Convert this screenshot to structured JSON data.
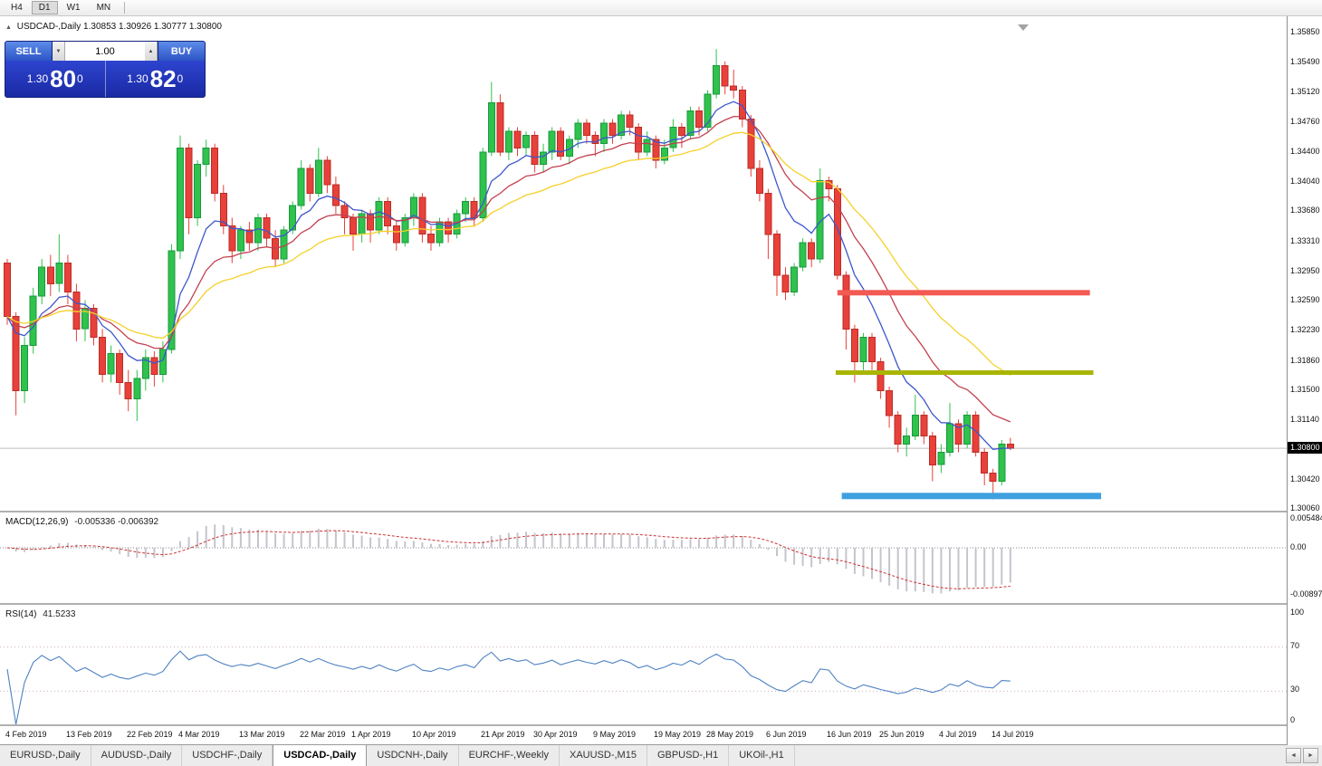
{
  "toolbar": {
    "timeframes": [
      "H4",
      "D1",
      "W1",
      "MN"
    ],
    "active_timeframe": "D1"
  },
  "chart": {
    "collapse_glyph": "▲",
    "title": "USDCAD-,Daily  1.30853 1.30926 1.30777 1.30800"
  },
  "trade_widget": {
    "sell_label": "SELL",
    "buy_label": "BUY",
    "volume": "1.00",
    "volume_down_glyph": "▼",
    "volume_up_glyph": "▲",
    "sell": {
      "prefix": "1.30",
      "big": "80",
      "sup": "0"
    },
    "buy": {
      "prefix": "1.30",
      "big": "82",
      "sup": "0"
    }
  },
  "chart_data": {
    "type": "candlestick",
    "symbol": "USDCAD-",
    "timeframe": "Daily",
    "colors": {
      "bull": "#2fc24d",
      "bear": "#e8403a"
    },
    "candles": [
      [
        1.3305,
        1.331,
        1.323,
        1.324
      ],
      [
        1.324,
        1.3245,
        1.312,
        1.315
      ],
      [
        1.315,
        1.3215,
        1.3135,
        1.3205
      ],
      [
        1.3205,
        1.3275,
        1.3195,
        1.3265
      ],
      [
        1.3265,
        1.331,
        1.3255,
        1.33
      ],
      [
        1.33,
        1.3315,
        1.3265,
        1.328
      ],
      [
        1.328,
        1.334,
        1.327,
        1.3305
      ],
      [
        1.3305,
        1.3315,
        1.3255,
        1.327
      ],
      [
        1.327,
        1.328,
        1.321,
        1.3225
      ],
      [
        1.3225,
        1.326,
        1.321,
        1.325
      ],
      [
        1.325,
        1.3255,
        1.3205,
        1.3215
      ],
      [
        1.3215,
        1.3225,
        1.316,
        1.317
      ],
      [
        1.317,
        1.3205,
        1.316,
        1.3195
      ],
      [
        1.3195,
        1.32,
        1.3145,
        1.316
      ],
      [
        1.316,
        1.3175,
        1.3125,
        1.314
      ],
      [
        1.314,
        1.3175,
        1.3113,
        1.3165
      ],
      [
        1.3165,
        1.32,
        1.315,
        1.319
      ],
      [
        1.319,
        1.3198,
        1.3155,
        1.317
      ],
      [
        1.317,
        1.321,
        1.316,
        1.32
      ],
      [
        1.32,
        1.3328,
        1.3195,
        1.332
      ],
      [
        1.332,
        1.346,
        1.331,
        1.3445
      ],
      [
        1.3445,
        1.345,
        1.334,
        1.336
      ],
      [
        1.336,
        1.343,
        1.335,
        1.3425
      ],
      [
        1.3425,
        1.3455,
        1.341,
        1.3445
      ],
      [
        1.3445,
        1.345,
        1.338,
        1.339
      ],
      [
        1.339,
        1.34,
        1.334,
        1.335
      ],
      [
        1.335,
        1.336,
        1.3305,
        1.332
      ],
      [
        1.332,
        1.335,
        1.331,
        1.3345
      ],
      [
        1.3345,
        1.3355,
        1.332,
        1.333
      ],
      [
        1.333,
        1.3365,
        1.332,
        1.336
      ],
      [
        1.336,
        1.3365,
        1.3325,
        1.3335
      ],
      [
        1.3335,
        1.3345,
        1.33,
        1.331
      ],
      [
        1.331,
        1.335,
        1.3305,
        1.3345
      ],
      [
        1.3345,
        1.338,
        1.334,
        1.3375
      ],
      [
        1.3375,
        1.343,
        1.337,
        1.342
      ],
      [
        1.342,
        1.3425,
        1.338,
        1.339
      ],
      [
        1.339,
        1.3445,
        1.3385,
        1.343
      ],
      [
        1.343,
        1.3435,
        1.339,
        1.34
      ],
      [
        1.34,
        1.341,
        1.3365,
        1.3375
      ],
      [
        1.3375,
        1.338,
        1.334,
        1.336
      ],
      [
        1.336,
        1.3365,
        1.332,
        1.334
      ],
      [
        1.334,
        1.337,
        1.333,
        1.3365
      ],
      [
        1.3365,
        1.337,
        1.333,
        1.3345
      ],
      [
        1.3345,
        1.3385,
        1.334,
        1.338
      ],
      [
        1.338,
        1.3385,
        1.334,
        1.335
      ],
      [
        1.335,
        1.3355,
        1.332,
        1.333
      ],
      [
        1.333,
        1.3365,
        1.3325,
        1.336
      ],
      [
        1.336,
        1.339,
        1.335,
        1.3385
      ],
      [
        1.3385,
        1.339,
        1.333,
        1.334
      ],
      [
        1.334,
        1.335,
        1.332,
        1.333
      ],
      [
        1.333,
        1.336,
        1.3325,
        1.3355
      ],
      [
        1.3355,
        1.336,
        1.333,
        1.334
      ],
      [
        1.334,
        1.337,
        1.3335,
        1.3365
      ],
      [
        1.3365,
        1.3385,
        1.3355,
        1.338
      ],
      [
        1.338,
        1.3385,
        1.335,
        1.336
      ],
      [
        1.336,
        1.3445,
        1.3355,
        1.344
      ],
      [
        1.344,
        1.3525,
        1.3435,
        1.35
      ],
      [
        1.35,
        1.351,
        1.3435,
        1.344
      ],
      [
        1.344,
        1.347,
        1.343,
        1.3465
      ],
      [
        1.3465,
        1.347,
        1.3435,
        1.3445
      ],
      [
        1.3445,
        1.3465,
        1.3435,
        1.346
      ],
      [
        1.346,
        1.3465,
        1.3415,
        1.3425
      ],
      [
        1.3425,
        1.345,
        1.3415,
        1.344
      ],
      [
        1.344,
        1.347,
        1.343,
        1.3465
      ],
      [
        1.3465,
        1.347,
        1.343,
        1.3435
      ],
      [
        1.3435,
        1.346,
        1.3425,
        1.3455
      ],
      [
        1.3455,
        1.348,
        1.3445,
        1.3475
      ],
      [
        1.3475,
        1.348,
        1.345,
        1.346
      ],
      [
        1.346,
        1.3465,
        1.3435,
        1.345
      ],
      [
        1.345,
        1.348,
        1.344,
        1.3475
      ],
      [
        1.3475,
        1.348,
        1.345,
        1.346
      ],
      [
        1.346,
        1.349,
        1.3455,
        1.3485
      ],
      [
        1.3485,
        1.349,
        1.346,
        1.347
      ],
      [
        1.347,
        1.3475,
        1.343,
        1.344
      ],
      [
        1.344,
        1.3465,
        1.3435,
        1.3455
      ],
      [
        1.3455,
        1.346,
        1.342,
        1.343
      ],
      [
        1.343,
        1.3455,
        1.3425,
        1.3445
      ],
      [
        1.3445,
        1.348,
        1.344,
        1.347
      ],
      [
        1.347,
        1.3475,
        1.3445,
        1.346
      ],
      [
        1.346,
        1.3495,
        1.3455,
        1.349
      ],
      [
        1.349,
        1.3495,
        1.346,
        1.347
      ],
      [
        1.347,
        1.3515,
        1.3465,
        1.351
      ],
      [
        1.351,
        1.3565,
        1.3505,
        1.3545
      ],
      [
        1.3545,
        1.355,
        1.351,
        1.352
      ],
      [
        1.352,
        1.354,
        1.3505,
        1.3515
      ],
      [
        1.3515,
        1.352,
        1.347,
        1.348
      ],
      [
        1.348,
        1.3485,
        1.341,
        1.342
      ],
      [
        1.342,
        1.343,
        1.338,
        1.339
      ],
      [
        1.339,
        1.3395,
        1.331,
        1.334
      ],
      [
        1.334,
        1.3345,
        1.3265,
        1.329
      ],
      [
        1.329,
        1.33,
        1.326,
        1.327
      ],
      [
        1.327,
        1.3305,
        1.3265,
        1.33
      ],
      [
        1.33,
        1.3335,
        1.3295,
        1.333
      ],
      [
        1.333,
        1.3335,
        1.33,
        1.331
      ],
      [
        1.331,
        1.342,
        1.3305,
        1.3405
      ],
      [
        1.3405,
        1.341,
        1.338,
        1.3395
      ],
      [
        1.3395,
        1.34,
        1.3285,
        1.329
      ],
      [
        1.329,
        1.3295,
        1.32,
        1.3225
      ],
      [
        1.3225,
        1.323,
        1.316,
        1.3185
      ],
      [
        1.3185,
        1.322,
        1.3175,
        1.3215
      ],
      [
        1.3215,
        1.322,
        1.3175,
        1.3185
      ],
      [
        1.3185,
        1.319,
        1.314,
        1.315
      ],
      [
        1.315,
        1.3155,
        1.3105,
        1.312
      ],
      [
        1.312,
        1.3125,
        1.3075,
        1.3085
      ],
      [
        1.3085,
        1.3105,
        1.307,
        1.3095
      ],
      [
        1.3095,
        1.3145,
        1.309,
        1.312
      ],
      [
        1.312,
        1.3125,
        1.3085,
        1.3095
      ],
      [
        1.3095,
        1.31,
        1.304,
        1.306
      ],
      [
        1.306,
        1.3085,
        1.305,
        1.3075
      ],
      [
        1.3075,
        1.3135,
        1.307,
        1.311
      ],
      [
        1.311,
        1.3115,
        1.3075,
        1.3085
      ],
      [
        1.3085,
        1.3125,
        1.308,
        1.312
      ],
      [
        1.312,
        1.3125,
        1.307,
        1.3075
      ],
      [
        1.3075,
        1.308,
        1.3035,
        1.305
      ],
      [
        1.305,
        1.3055,
        1.3018,
        1.304
      ],
      [
        1.304,
        1.309,
        1.3035,
        1.3085
      ],
      [
        1.30853,
        1.30926,
        1.30777,
        1.308
      ]
    ],
    "moving_averages": [
      {
        "period": 8,
        "color": "#3c57cc"
      },
      {
        "period": 16,
        "color": "#c2414f"
      },
      {
        "period": 28,
        "color": "#f5d02a"
      }
    ],
    "objects": [
      {
        "type": "hline_segment",
        "color": "#f25a52",
        "price": 1.3269,
        "i1": 96.0,
        "i2": 125.2,
        "thickness": 6
      },
      {
        "type": "hline_segment",
        "color": "#a9b503",
        "price": 1.3172,
        "i1": 95.8,
        "i2": 125.6,
        "thickness": 5
      },
      {
        "type": "hline_segment",
        "color": "#3fa0df",
        "price": 1.3022,
        "i1": 96.5,
        "i2": 126.5,
        "thickness": 7
      }
    ],
    "price_axis": {
      "current": "1.30800",
      "current_price": 1.308,
      "labels": [
        {
          "text": "1.35850",
          "p": 1.3585
        },
        {
          "text": "1.35490",
          "p": 1.3549
        },
        {
          "text": "1.35120",
          "p": 1.3512
        },
        {
          "text": "1.34760",
          "p": 1.3476
        },
        {
          "text": "1.34400",
          "p": 1.344
        },
        {
          "text": "1.34040",
          "p": 1.3404
        },
        {
          "text": "1.33680",
          "p": 1.3368
        },
        {
          "text": "1.33310",
          "p": 1.3331
        },
        {
          "text": "1.32950",
          "p": 1.3295
        },
        {
          "text": "1.32590",
          "p": 1.3259
        },
        {
          "text": "1.32230",
          "p": 1.3223
        },
        {
          "text": "1.31860",
          "p": 1.3186
        },
        {
          "text": "1.31500",
          "p": 1.315
        },
        {
          "text": "1.31140",
          "p": 1.3114
        },
        {
          "text": "1.30420",
          "p": 1.3042
        },
        {
          "text": "1.30060",
          "p": 1.3006
        }
      ]
    },
    "x_axis": {
      "labels": [
        {
          "text": "4 Feb 2019",
          "i": 0
        },
        {
          "text": "13 Feb 2019",
          "i": 7
        },
        {
          "text": "22 Feb 2019",
          "i": 14
        },
        {
          "text": "4 Mar 2019",
          "i": 20
        },
        {
          "text": "13 Mar 2019",
          "i": 27
        },
        {
          "text": "22 Mar 2019",
          "i": 34
        },
        {
          "text": "1 Apr 2019",
          "i": 40
        },
        {
          "text": "10 Apr 2019",
          "i": 47
        },
        {
          "text": "21 Apr 2019",
          "i": 55
        },
        {
          "text": "30 Apr 2019",
          "i": 61
        },
        {
          "text": "9 May 2019",
          "i": 68
        },
        {
          "text": "19 May 2019",
          "i": 75
        },
        {
          "text": "28 May 2019",
          "i": 81
        },
        {
          "text": "6 Jun 2019",
          "i": 88
        },
        {
          "text": "16 Jun 2019",
          "i": 95
        },
        {
          "text": "25 Jun 2019",
          "i": 101
        },
        {
          "text": "4 Jul 2019",
          "i": 108
        },
        {
          "text": "14 Jul 2019",
          "i": 114
        }
      ]
    },
    "indicators": {
      "macd": {
        "label": "MACD(12,26,9)",
        "values": "-0.005336 -0.006392",
        "params": [
          12,
          26,
          9
        ],
        "histogram_color": "#c4c4ce",
        "signal_color": "#cc3333",
        "axis": [
          {
            "text": "0.005484",
            "v": 0.005484
          },
          {
            "text": "0.00",
            "v": 0
          },
          {
            "text": "-0.008973",
            "v": -0.008973
          }
        ]
      },
      "rsi": {
        "label": "RSI(14)",
        "value": "41.5233",
        "period": 14,
        "color": "#4f82c2",
        "levels": [
          70,
          30
        ],
        "axis": [
          {
            "text": "100",
            "v": 100
          },
          {
            "text": "70",
            "v": 70
          },
          {
            "text": "30",
            "v": 30
          },
          {
            "text": "0",
            "v": 0
          }
        ]
      }
    }
  },
  "tabs": {
    "items": [
      {
        "label": "EURUSD-,Daily",
        "active": false
      },
      {
        "label": "AUDUSD-,Daily",
        "active": false
      },
      {
        "label": "USDCHF-,Daily",
        "active": false
      },
      {
        "label": "USDCAD-,Daily",
        "active": true
      },
      {
        "label": "USDCNH-,Daily",
        "active": false
      },
      {
        "label": "EURCHF-,Weekly",
        "active": false
      },
      {
        "label": "XAUUSD-,M15",
        "active": false
      },
      {
        "label": "GBPUSD-,H1",
        "active": false
      },
      {
        "label": "UKOil-,H1",
        "active": false
      }
    ],
    "nav_left_glyph": "◄",
    "nav_right_glyph": "►"
  }
}
